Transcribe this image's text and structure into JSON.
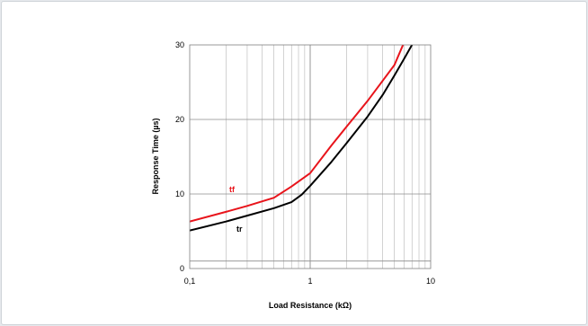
{
  "chart_data": {
    "type": "line",
    "xlabel": "Load Resistance (kΩ)",
    "ylabel": "Response Time (µs)",
    "x_scale": "log",
    "xlim": [
      0.1,
      10
    ],
    "ylim": [
      0,
      30
    ],
    "x_ticks": [
      "0,1",
      "1",
      "10"
    ],
    "y_ticks": [
      "0",
      "10",
      "20",
      "30"
    ],
    "grid": true,
    "series": [
      {
        "name": "tf",
        "color": "#e8141b",
        "x": [
          0.1,
          0.2,
          0.3,
          0.5,
          0.7,
          1.0,
          1.5,
          2.0,
          3.0,
          4.0,
          5.0,
          6.0,
          6.5
        ],
        "y": [
          6.3,
          7.6,
          8.4,
          9.5,
          11.0,
          12.8,
          16.5,
          19.0,
          22.5,
          25.2,
          27.3,
          30.3,
          32.0
        ]
      },
      {
        "name": "tr",
        "color": "#000000",
        "x": [
          0.1,
          0.2,
          0.3,
          0.5,
          0.7,
          0.85,
          1.0,
          1.5,
          2.0,
          3.0,
          4.0,
          5.0,
          6.0,
          7.0,
          7.5
        ],
        "y": [
          5.1,
          6.3,
          7.1,
          8.1,
          8.9,
          9.9,
          11.1,
          14.3,
          16.8,
          20.4,
          23.3,
          25.9,
          28.1,
          30.0,
          31.0
        ]
      }
    ]
  }
}
